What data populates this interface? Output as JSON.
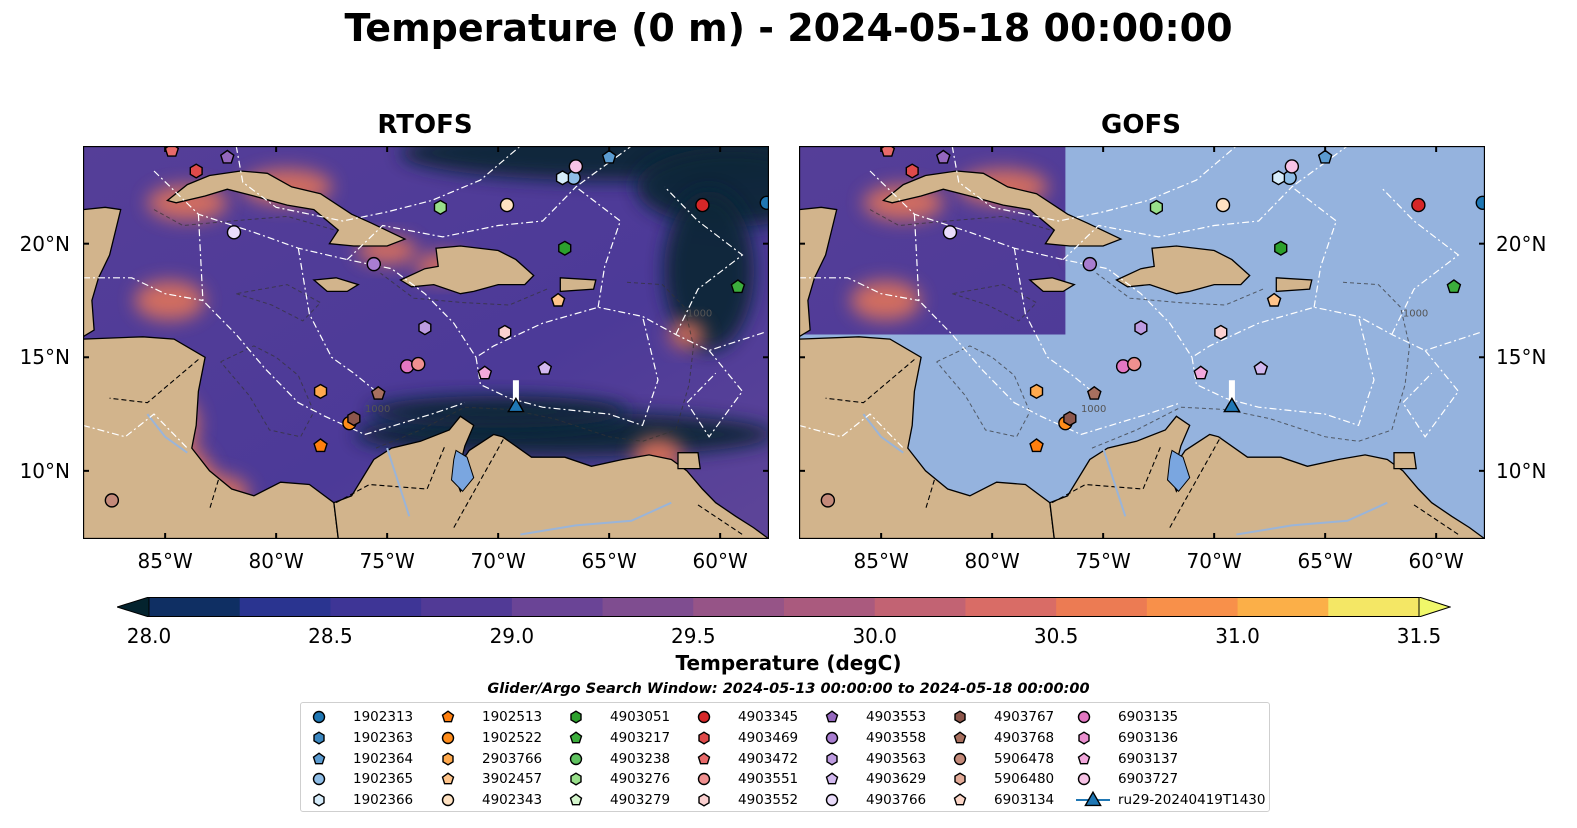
{
  "figure": {
    "title": "Temperature (0 m) - 2024-05-18 00:00:00",
    "panels": [
      {
        "id": "rtofs",
        "title": "RTOFS"
      },
      {
        "id": "gofs",
        "title": "GOFS"
      }
    ],
    "lon_ticks": [
      "85°W",
      "80°W",
      "75°W",
      "70°W",
      "65°W",
      "60°W"
    ],
    "lat_ticks": [
      "20°N",
      "15°N",
      "10°N"
    ],
    "contour_label": "1000",
    "colors": {
      "land": "#d2b48c",
      "gofs_ocean": "#95b3de",
      "border": "#000000",
      "eez_lines": "#ffffff",
      "rivers": "#9ab4d8"
    }
  },
  "colorbar": {
    "label": "Temperature (degC)",
    "ticks": [
      "28.0",
      "28.5",
      "29.0",
      "29.5",
      "30.0",
      "30.5",
      "31.0",
      "31.5"
    ],
    "range": [
      28.0,
      31.5
    ],
    "step": 0.25,
    "colormap": "thermal",
    "extend": "both"
  },
  "search_window": "Glider/Argo Search Window: 2024-05-13 00:00:00 to 2024-05-18 00:00:00",
  "legend": {
    "columns": [
      [
        {
          "label": "1902313",
          "marker": "circle",
          "color": "#1f77b4"
        },
        {
          "label": "1902363",
          "marker": "hexagon",
          "color": "#3b87c0"
        },
        {
          "label": "1902364",
          "marker": "pentagon",
          "color": "#5b9bd0"
        },
        {
          "label": "1902365",
          "marker": "circle",
          "color": "#8fbde6"
        },
        {
          "label": "1902366",
          "marker": "hexagon",
          "color": "#d6ecfa"
        }
      ],
      [
        {
          "label": "1902513",
          "marker": "pentagon",
          "color": "#ff7f0e"
        },
        {
          "label": "1902522",
          "marker": "circle",
          "color": "#ff8c1a"
        },
        {
          "label": "2903766",
          "marker": "hexagon",
          "color": "#ffa94d"
        },
        {
          "label": "3902457",
          "marker": "pentagon",
          "color": "#ffc48a"
        },
        {
          "label": "4902343",
          "marker": "circle",
          "color": "#ffe2c2"
        }
      ],
      [
        {
          "label": "4903051",
          "marker": "hexagon",
          "color": "#2ca02c"
        },
        {
          "label": "4903217",
          "marker": "pentagon",
          "color": "#3cae3c"
        },
        {
          "label": "4903238",
          "marker": "circle",
          "color": "#5fc25f"
        },
        {
          "label": "4903276",
          "marker": "hexagon",
          "color": "#98df8a"
        },
        {
          "label": "4903279",
          "marker": "pentagon",
          "color": "#d4f5cc"
        }
      ],
      [
        {
          "label": "4903345",
          "marker": "circle",
          "color": "#d62728"
        },
        {
          "label": "4903469",
          "marker": "hexagon",
          "color": "#df4a4a"
        },
        {
          "label": "4903472",
          "marker": "pentagon",
          "color": "#e86a6a"
        },
        {
          "label": "4903551",
          "marker": "circle",
          "color": "#f09090"
        },
        {
          "label": "4903552",
          "marker": "hexagon",
          "color": "#fbd0d0"
        }
      ],
      [
        {
          "label": "4903553",
          "marker": "pentagon",
          "color": "#9467bd"
        },
        {
          "label": "4903558",
          "marker": "circle",
          "color": "#a87dd0"
        },
        {
          "label": "4903563",
          "marker": "hexagon",
          "color": "#bd9be0"
        },
        {
          "label": "4903629",
          "marker": "pentagon",
          "color": "#d2b8ef"
        },
        {
          "label": "4903766",
          "marker": "circle",
          "color": "#eadcfb"
        }
      ],
      [
        {
          "label": "4903767",
          "marker": "hexagon",
          "color": "#8c564b"
        },
        {
          "label": "4903768",
          "marker": "pentagon",
          "color": "#a8705f"
        },
        {
          "label": "5906478",
          "marker": "circle",
          "color": "#c48a7a"
        },
        {
          "label": "5906480",
          "marker": "hexagon",
          "color": "#e3ab98"
        },
        {
          "label": "6903134",
          "marker": "pentagon",
          "color": "#fbd6c8"
        }
      ],
      [
        {
          "label": "6903135",
          "marker": "circle",
          "color": "#e377c2"
        },
        {
          "label": "6903136",
          "marker": "hexagon",
          "color": "#ea8fcf"
        },
        {
          "label": "6903137",
          "marker": "pentagon",
          "color": "#f2a8dc"
        },
        {
          "label": "6903727",
          "marker": "circle",
          "color": "#f7c3e6"
        },
        {
          "label": "ru29-20240419T1430",
          "marker": "triangle-line",
          "color": "#1f77b4"
        }
      ]
    ]
  },
  "floats": [
    {
      "label": "1902313",
      "lon": -57.9,
      "lat": 21.8
    },
    {
      "label": "1902364",
      "lon": -65.0,
      "lat": 23.8
    },
    {
      "label": "1902365",
      "lon": -66.6,
      "lat": 22.9
    },
    {
      "label": "1902366",
      "lon": -67.1,
      "lat": 22.9
    },
    {
      "label": "1902513",
      "lon": -78.0,
      "lat": 11.1
    },
    {
      "label": "1902522",
      "lon": -76.7,
      "lat": 12.1
    },
    {
      "label": "2903766",
      "lon": -78.0,
      "lat": 13.5
    },
    {
      "label": "3902457",
      "lon": -67.3,
      "lat": 17.5
    },
    {
      "label": "4902343",
      "lon": -69.6,
      "lat": 21.7
    },
    {
      "label": "4903051",
      "lon": -67.0,
      "lat": 19.8
    },
    {
      "label": "4903217",
      "lon": -59.2,
      "lat": 18.1
    },
    {
      "label": "4903276",
      "lon": -72.6,
      "lat": 21.6
    },
    {
      "label": "4903345",
      "lon": -60.8,
      "lat": 21.7
    },
    {
      "label": "4903553",
      "lon": -82.2,
      "lat": 23.8
    },
    {
      "label": "4903558",
      "lon": -75.6,
      "lat": 19.1
    },
    {
      "label": "4903629",
      "lon": -67.9,
      "lat": 14.5
    },
    {
      "label": "4903766",
      "lon": -81.9,
      "lat": 20.5
    },
    {
      "label": "4903767",
      "lon": -76.5,
      "lat": 12.3
    },
    {
      "label": "4903768",
      "lon": -75.4,
      "lat": 13.4
    },
    {
      "label": "5906478",
      "lon": -87.4,
      "lat": 8.7
    },
    {
      "label": "6903135",
      "lon": -74.1,
      "lat": 14.6
    },
    {
      "label": "6903137",
      "lon": -70.6,
      "lat": 14.3
    },
    {
      "label": "6903727",
      "lon": -66.5,
      "lat": 23.4
    },
    {
      "label": "4903551",
      "lon": -73.6,
      "lat": 14.7
    },
    {
      "label": "4903472",
      "lon": -84.7,
      "lat": 24.1
    },
    {
      "label": "4903469",
      "lon": -83.6,
      "lat": 23.2
    },
    {
      "label": "4903552",
      "lon": -69.7,
      "lat": 16.1
    },
    {
      "label": "4903563",
      "lon": -73.3,
      "lat": 16.3
    }
  ],
  "glider": {
    "label": "ru29-20240419T1430",
    "lon": -69.2,
    "lat": 12.8
  }
}
